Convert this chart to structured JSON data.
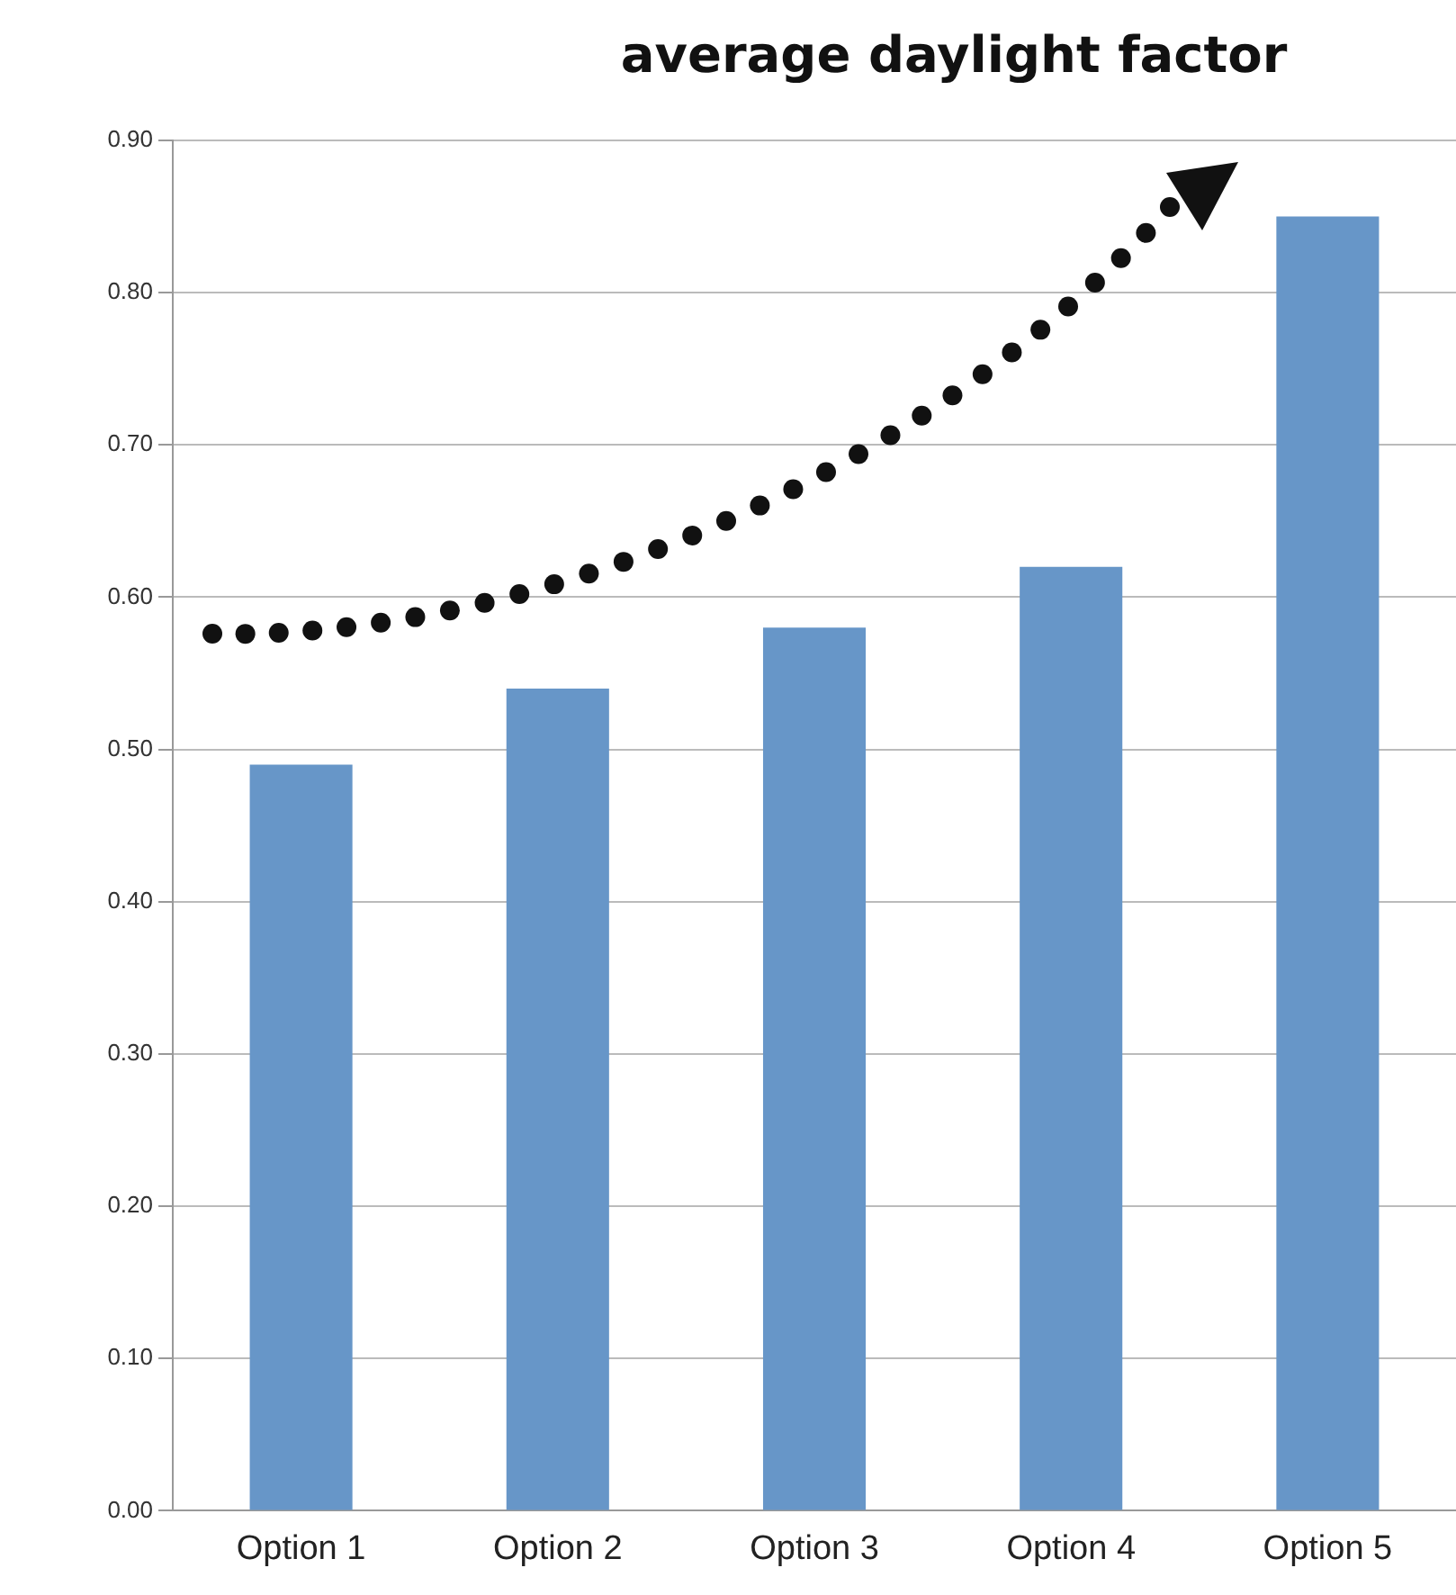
{
  "chart_data": {
    "type": "bar",
    "title": "average daylight factor",
    "categories": [
      "Option 1",
      "Option 2",
      "Option 3",
      "Option 4",
      "Option 5"
    ],
    "values": [
      0.49,
      0.54,
      0.58,
      0.62,
      0.85
    ],
    "color": "#6796c8",
    "ylim": [
      0,
      0.9
    ],
    "yticks": [
      {
        "value": 0,
        "label": "0.00"
      },
      {
        "value": 0.1,
        "label": "0.10"
      },
      {
        "value": 0.2,
        "label": "0.20"
      },
      {
        "value": 0.3,
        "label": "0.30"
      },
      {
        "value": 0.4,
        "label": "0.40"
      },
      {
        "value": 0.5,
        "label": "0.50"
      },
      {
        "value": 0.6,
        "label": "0.60"
      },
      {
        "value": 0.7,
        "label": "0.70"
      },
      {
        "value": 0.8,
        "label": "0.80"
      },
      {
        "value": 0.9,
        "label": "0.90"
      }
    ],
    "grid": "y",
    "legend": false
  }
}
